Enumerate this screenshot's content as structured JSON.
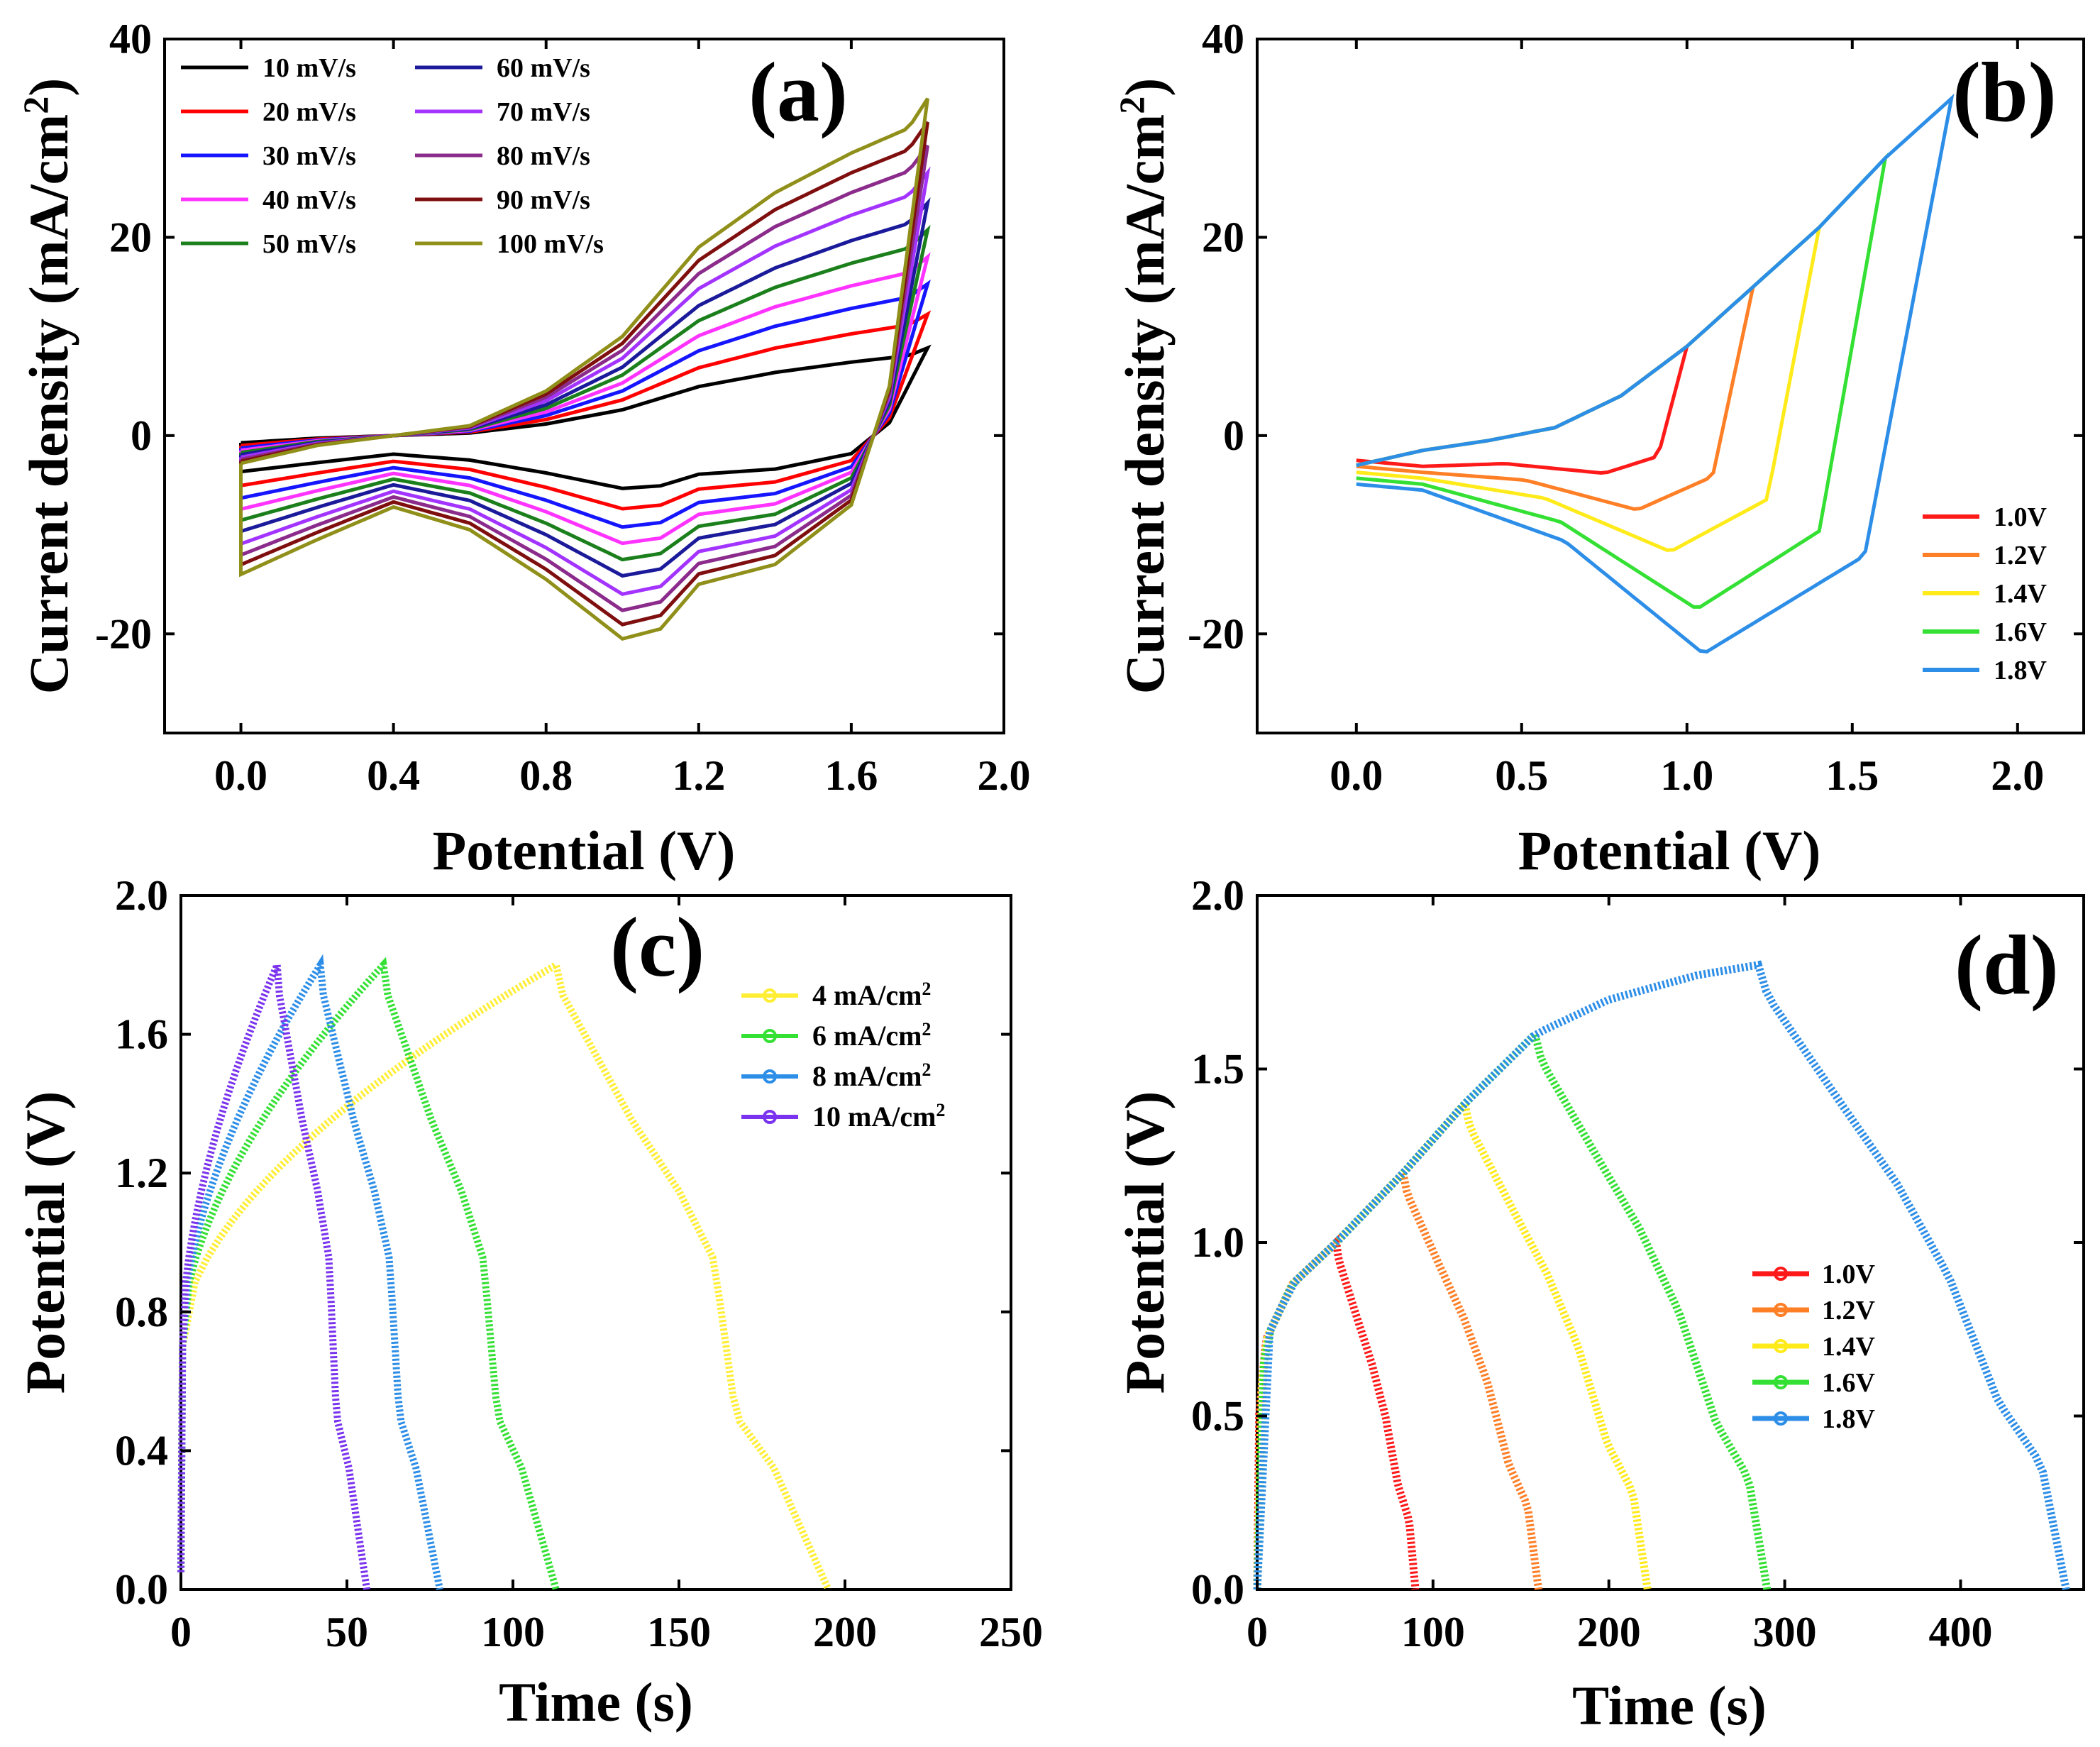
{
  "chart_data": [
    {
      "panel": "(a)",
      "type": "line",
      "xlabel": "Potential (V)",
      "ylabel": "Current density (mA/cm",
      "ylabel_sup": "2",
      "ylabel_end": ")",
      "xlim": [
        -0.2,
        2.0
      ],
      "ylim": [
        -30,
        40
      ],
      "xticks": [
        "0.0",
        "0.4",
        "0.8",
        "1.2",
        "1.6",
        "2.0"
      ],
      "xtick_values": [
        0.0,
        0.4,
        0.8,
        1.2,
        1.6,
        2.0
      ],
      "yticks": [
        "40",
        "20",
        "0",
        "-20"
      ],
      "ytick_values": [
        40,
        20,
        0,
        -20
      ],
      "series": [
        {
          "name": "10 mV/s",
          "color": "#000000",
          "scale": 0.26
        },
        {
          "name": "20 mV/s",
          "color": "#ff0000",
          "scale": 0.36
        },
        {
          "name": "30 mV/s",
          "color": "#1515ff",
          "scale": 0.45
        },
        {
          "name": "40 mV/s",
          "color": "#ff33ff",
          "scale": 0.53
        },
        {
          "name": "50 mV/s",
          "color": "#1b7f1b",
          "scale": 0.61
        },
        {
          "name": "60 mV/s",
          "color": "#1a1a9a",
          "scale": 0.69
        },
        {
          "name": "70 mV/s",
          "color": "#a333ff",
          "scale": 0.78
        },
        {
          "name": "80 mV/s",
          "color": "#8b2b8b",
          "scale": 0.86
        },
        {
          "name": "90 mV/s",
          "color": "#7f0f0f",
          "scale": 0.93
        },
        {
          "name": "100 mV/s",
          "color": "#8f8f1a",
          "scale": 1.0
        }
      ],
      "template_100mVs": {
        "upper": [
          [
            0.0,
            -2.8
          ],
          [
            0.2,
            -1.0
          ],
          [
            0.4,
            0.0
          ],
          [
            0.6,
            1.0
          ],
          [
            0.8,
            4.5
          ],
          [
            1.0,
            10.0
          ],
          [
            1.2,
            19.0
          ],
          [
            1.4,
            24.5
          ],
          [
            1.6,
            28.5
          ],
          [
            1.75,
            31.0
          ],
          [
            1.8,
            34.0
          ]
        ],
        "lower": [
          [
            0.0,
            -14.0
          ],
          [
            0.2,
            -10.5
          ],
          [
            0.4,
            -7.2
          ],
          [
            0.6,
            -9.5
          ],
          [
            0.8,
            -14.5
          ],
          [
            1.0,
            -20.5
          ],
          [
            1.1,
            -19.5
          ],
          [
            1.2,
            -15.0
          ],
          [
            1.4,
            -13.0
          ],
          [
            1.6,
            -7.0
          ],
          [
            1.7,
            5.0
          ],
          [
            1.8,
            34.0
          ]
        ]
      }
    },
    {
      "panel": "(b)",
      "type": "line",
      "xlabel": "Potential (V)",
      "ylabel": "Current density (mA/cm",
      "ylabel_sup": "2",
      "ylabel_end": ")",
      "xlim": [
        -0.3,
        2.2
      ],
      "ylim": [
        -30,
        40
      ],
      "xticks": [
        "0.0",
        "0.5",
        "1.0",
        "1.5",
        "2.0"
      ],
      "xtick_values": [
        0.0,
        0.5,
        1.0,
        1.5,
        2.0
      ],
      "yticks": [
        "40",
        "20",
        "0",
        "-20"
      ],
      "ytick_values": [
        40,
        20,
        0,
        -20
      ],
      "series": [
        {
          "name": "1.0V",
          "color": "#ff1a1a",
          "vmax": 1.0,
          "imax": 8.0,
          "min_v": 0.75,
          "min_i": -3.8
        },
        {
          "name": "1.2V",
          "color": "#ff7f27",
          "vmax": 1.2,
          "imax": 16.0,
          "min_v": 0.85,
          "min_i": -7.5
        },
        {
          "name": "1.4V",
          "color": "#ffea1a",
          "vmax": 1.4,
          "imax": 21.0,
          "min_v": 0.95,
          "min_i": -11.7
        },
        {
          "name": "1.6V",
          "color": "#33e033",
          "vmax": 1.6,
          "imax": 28.5,
          "min_v": 1.03,
          "min_i": -17.5
        },
        {
          "name": "1.8V",
          "color": "#2d8ee8",
          "vmax": 1.8,
          "imax": 34.0,
          "min_v": 1.05,
          "min_i": -22.0
        }
      ]
    },
    {
      "panel": "(c)",
      "type": "line",
      "xlabel": "Time (s)",
      "ylabel": "Potential (V)",
      "xlim": [
        0,
        250
      ],
      "ylim": [
        0,
        2.0
      ],
      "xticks": [
        "0",
        "50",
        "100",
        "150",
        "200",
        "250"
      ],
      "xtick_values": [
        0,
        50,
        100,
        150,
        200,
        250
      ],
      "yticks": [
        "2.0",
        "1.6",
        "1.2",
        "0.8",
        "0.4",
        "0.0"
      ],
      "ytick_values": [
        2.0,
        1.6,
        1.2,
        0.8,
        0.4,
        0.0
      ],
      "series": [
        {
          "name": "4  mA/cm",
          "sup": "2",
          "color": "#ffee33",
          "t_peak": 113,
          "t_end": 195
        },
        {
          "name": "6  mA/cm",
          "sup": "2",
          "color": "#33e033",
          "t_peak": 61,
          "t_end": 113
        },
        {
          "name": "8 mA/cm",
          "sup": "2",
          "color": "#2d8ee8",
          "t_peak": 42,
          "t_end": 78
        },
        {
          "name": "10 mA/cm",
          "sup": "2",
          "color": "#7a33ee",
          "t_peak": 29,
          "t_end": 56
        }
      ]
    },
    {
      "panel": "(d)",
      "type": "line",
      "xlabel": "Time (s)",
      "ylabel": "Potential (V)",
      "xlim": [
        0,
        470
      ],
      "ylim": [
        0,
        2.0
      ],
      "xticks": [
        "0",
        "100",
        "200",
        "300",
        "400"
      ],
      "xtick_values": [
        0,
        100,
        200,
        300,
        400
      ],
      "yticks": [
        "2.0",
        "1.5",
        "1.0",
        "0.5",
        "0.0"
      ],
      "ytick_values": [
        2.0,
        1.5,
        1.0,
        0.5,
        0.0
      ],
      "series": [
        {
          "name": "1.0V",
          "color": "#ff1a1a",
          "vmax": 1.0,
          "t_peak": 45,
          "t_end": 90
        },
        {
          "name": "1.2V",
          "color": "#ff7f27",
          "vmax": 1.2,
          "t_peak": 83,
          "t_end": 160
        },
        {
          "name": "1.4V",
          "color": "#ffea1a",
          "vmax": 1.4,
          "t_peak": 118,
          "t_end": 222
        },
        {
          "name": "1.6V",
          "color": "#33e033",
          "vmax": 1.6,
          "t_peak": 158,
          "t_end": 290
        },
        {
          "name": "1.8V",
          "color": "#2d8ee8",
          "vmax": 1.8,
          "t_peak": 285,
          "t_end": 460
        }
      ]
    }
  ]
}
